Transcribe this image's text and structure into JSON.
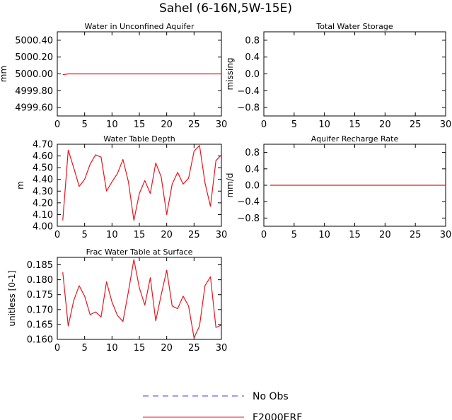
{
  "title": "Sahel (6-16N,5W-15E)",
  "series_colors": {
    "obs": "#3a3aff",
    "model": "#e8141e"
  },
  "legend": [
    {
      "name": "No Obs",
      "style": "dashed",
      "color": "#3a3aff"
    },
    {
      "name": "F2000ERF",
      "style": "solid",
      "color": "#e8141e"
    }
  ],
  "chart_data": [
    {
      "id": "unconfined",
      "type": "line",
      "title": "Water in Unconfined Aquifer",
      "ylabel": "mm",
      "xlim": [
        0,
        30
      ],
      "ylim": [
        4999.5,
        5000.5
      ],
      "xticks": [
        0,
        5,
        10,
        15,
        20,
        25,
        30
      ],
      "yticks": [
        4999.6,
        4999.8,
        5000.0,
        5000.2,
        5000.4
      ],
      "ytick_labels": [
        "4999.60",
        "4999.80",
        "5000.00",
        "5000.20",
        "5000.40"
      ],
      "series": [
        {
          "name": "F2000ERF",
          "x": [
            1,
            2,
            30
          ],
          "values": [
            4999.99,
            5000.0,
            5000.0
          ]
        }
      ]
    },
    {
      "id": "tws",
      "type": "line",
      "title": "Total Water Storage",
      "ylabel": "missing",
      "xlim": [
        0,
        30
      ],
      "ylim": [
        -1.0,
        1.0
      ],
      "xticks": [
        0,
        5,
        10,
        15,
        20,
        25,
        30
      ],
      "yticks": [
        -0.8,
        -0.4,
        0.0,
        0.4,
        0.8
      ],
      "ytick_labels": [
        "−0.8",
        "−0.4",
        "0.0",
        "0.4",
        "0.8"
      ],
      "series": []
    },
    {
      "id": "wtd",
      "type": "line",
      "title": "Water Table Depth",
      "ylabel": "m",
      "xlim": [
        0,
        30
      ],
      "ylim": [
        4.0,
        4.7
      ],
      "xticks": [
        0,
        5,
        10,
        15,
        20,
        25,
        30
      ],
      "yticks": [
        4.0,
        4.1,
        4.2,
        4.3,
        4.4,
        4.5,
        4.6,
        4.7
      ],
      "ytick_labels": [
        "4.00",
        "4.10",
        "4.20",
        "4.30",
        "4.40",
        "4.50",
        "4.60",
        "4.70"
      ],
      "series": [
        {
          "name": "F2000ERF",
          "x": [
            1,
            2,
            3,
            4,
            5,
            6,
            7,
            8,
            9,
            10,
            11,
            12,
            13,
            14,
            15,
            16,
            17,
            18,
            19,
            20,
            21,
            22,
            23,
            24,
            25,
            26,
            27,
            28,
            29,
            30
          ],
          "values": [
            4.05,
            4.65,
            4.5,
            4.34,
            4.4,
            4.53,
            4.61,
            4.59,
            4.3,
            4.38,
            4.45,
            4.57,
            4.38,
            4.05,
            4.28,
            4.39,
            4.28,
            4.54,
            4.42,
            4.1,
            4.36,
            4.46,
            4.36,
            4.41,
            4.64,
            4.69,
            4.37,
            4.17,
            4.56,
            4.61
          ]
        }
      ]
    },
    {
      "id": "recharge",
      "type": "line",
      "title": "Aquifer Recharge Rate",
      "ylabel": "mm/d",
      "xlim": [
        0,
        30
      ],
      "ylim": [
        -1.0,
        1.0
      ],
      "xticks": [
        0,
        5,
        10,
        15,
        20,
        25,
        30
      ],
      "yticks": [
        -0.8,
        -0.4,
        0.0,
        0.4,
        0.8
      ],
      "ytick_labels": [
        "−0.8",
        "−0.4",
        "0.0",
        "0.4",
        "0.8"
      ],
      "series": [
        {
          "name": "F2000ERF",
          "x": [
            1,
            30
          ],
          "values": [
            0.0,
            0.0
          ]
        }
      ]
    },
    {
      "id": "frac",
      "type": "line",
      "title": "Frac Water Table at Surface",
      "ylabel": "unitless [0-1]",
      "xlim": [
        0,
        30
      ],
      "ylim": [
        0.16,
        0.1875
      ],
      "xticks": [
        0,
        5,
        10,
        15,
        20,
        25,
        30
      ],
      "yticks": [
        0.16,
        0.165,
        0.17,
        0.175,
        0.18,
        0.185
      ],
      "ytick_labels": [
        "0.160",
        "0.165",
        "0.170",
        "0.175",
        "0.180",
        "0.185"
      ],
      "series": [
        {
          "name": "F2000ERF",
          "x": [
            1,
            2,
            3,
            4,
            5,
            6,
            7,
            8,
            9,
            10,
            11,
            12,
            13,
            14,
            15,
            16,
            17,
            18,
            19,
            20,
            21,
            22,
            23,
            24,
            25,
            26,
            27,
            28,
            29,
            30
          ],
          "values": [
            0.1825,
            0.1645,
            0.173,
            0.178,
            0.1745,
            0.1683,
            0.1692,
            0.1675,
            0.1793,
            0.1725,
            0.168,
            0.166,
            0.176,
            0.1868,
            0.1773,
            0.1715,
            0.1807,
            0.1662,
            0.175,
            0.1832,
            0.1712,
            0.1703,
            0.1745,
            0.1712,
            0.1605,
            0.1645,
            0.178,
            0.181,
            0.164,
            0.1648
          ]
        }
      ]
    }
  ]
}
